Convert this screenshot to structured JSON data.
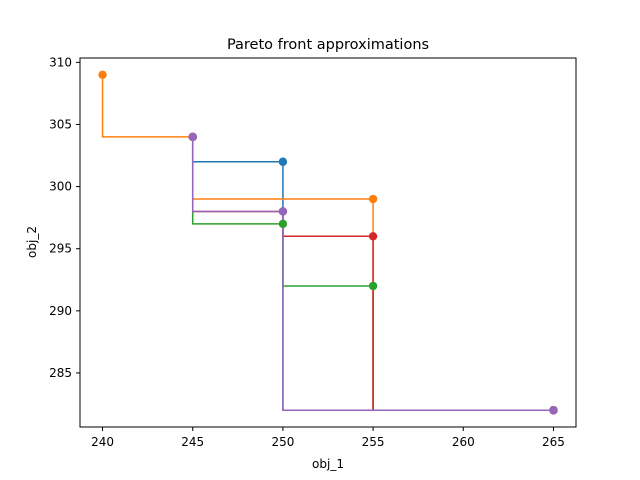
{
  "chart_data": {
    "type": "line",
    "title": "Pareto front approximations",
    "xlabel": "obj_1",
    "ylabel": "obj_2",
    "xlim": [
      238.75,
      266.25
    ],
    "ylim": [
      280.65,
      310.35
    ],
    "xticks": [
      240,
      245,
      250,
      255,
      260,
      265
    ],
    "yticks": [
      285,
      290,
      295,
      300,
      305,
      310
    ],
    "grid": false,
    "legend": "none",
    "series": [
      {
        "color": "#1f77b4",
        "points": [
          [
            245,
            304
          ],
          [
            250,
            302
          ],
          [
            265,
            282
          ]
        ]
      },
      {
        "color": "#ff7f0e",
        "points": [
          [
            240,
            309
          ],
          [
            245,
            304
          ],
          [
            255,
            299
          ],
          [
            265,
            282
          ]
        ]
      },
      {
        "color": "#2ca02c",
        "points": [
          [
            245,
            304
          ],
          [
            250,
            297
          ],
          [
            255,
            292
          ],
          [
            265,
            282
          ]
        ]
      },
      {
        "color": "#d62728",
        "points": [
          [
            245,
            304
          ],
          [
            250,
            298
          ],
          [
            255,
            296
          ],
          [
            265,
            282
          ]
        ]
      },
      {
        "color": "#9467bd",
        "points": [
          [
            245,
            304
          ],
          [
            250,
            298
          ],
          [
            265,
            282
          ]
        ]
      }
    ]
  }
}
